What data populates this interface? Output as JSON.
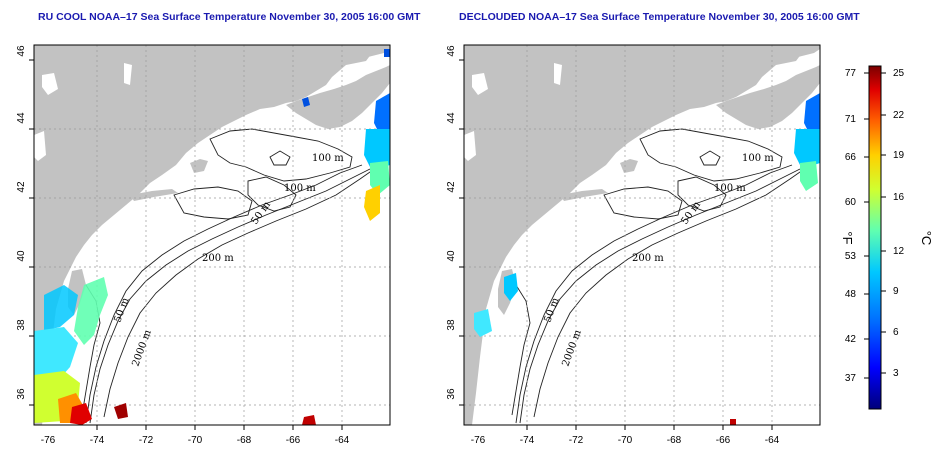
{
  "panels": [
    {
      "title": "RU COOL NOAA–17 Sea Surface Temperature November 30, 2005 16:00 GMT"
    },
    {
      "title": "DECLOUDED NOAA–17 Sea Surface Temperature November 30, 2005 16:00 GMT"
    }
  ],
  "axes": {
    "x_ticks": [
      "-76",
      "-74",
      "-72",
      "-70",
      "-68",
      "-66",
      "-64"
    ],
    "y_ticks": [
      "36",
      "38",
      "40",
      "42",
      "44",
      "46"
    ]
  },
  "contour_labels": {
    "c100a": "100 m",
    "c100b": "100 m",
    "c50a": "50 m",
    "c200": "200 m",
    "c50b": "50 m",
    "c2000": "2000 m"
  },
  "colorbar": {
    "fahrenheit_ticks": [
      "77",
      "71",
      "66",
      "60",
      "53",
      "48",
      "42",
      "37"
    ],
    "celsius_ticks": [
      "25",
      "22",
      "19",
      "16",
      "12",
      "9",
      "6",
      "3"
    ],
    "unit_f": "°F",
    "unit_c": "°C"
  },
  "colors": {
    "land": "#c2c2c2",
    "title": "#1a1ab0",
    "grid": "#9a9a9a"
  }
}
